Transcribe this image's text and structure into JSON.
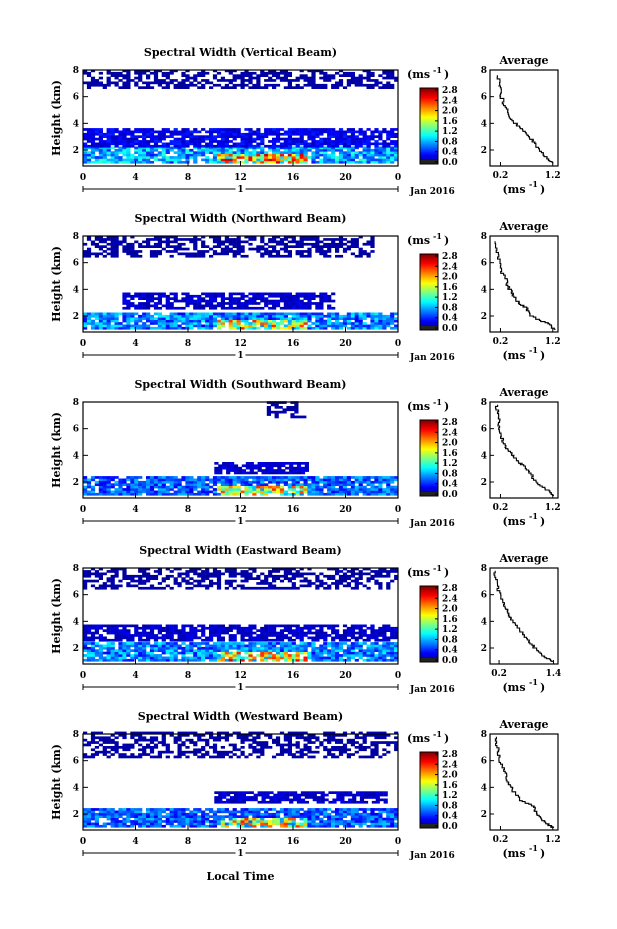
{
  "x_axis_label": "Local Time",
  "panels": [
    {
      "title": "Spectral Width (Vertical Beam)",
      "ylabel": "Height (km)",
      "date_label": "Jan 2016",
      "day_label": "1",
      "x_ticks": [
        "0",
        "4",
        "8",
        "12",
        "16",
        "20",
        "0"
      ],
      "y_ticks": [
        "2",
        "4",
        "6",
        "8"
      ],
      "colorbar_unit": "(ms",
      "colorbar_unit_sup": "-1",
      "colorbar_ticks": [
        "0.0",
        "0.4",
        "0.8",
        "1.2",
        "1.6",
        "2.0",
        "2.4",
        "2.8"
      ],
      "avg_title": "Average",
      "avg_xticks": [
        "0.2",
        "1.2"
      ],
      "avg_xlabel": "(ms",
      "avg_xlabel_sup": "-1",
      "avg_yticks": [
        "2",
        "4",
        "6",
        "8"
      ]
    },
    {
      "title": "Spectral Width (Northward Beam)",
      "ylabel": "Height (km)",
      "date_label": "Jan 2016",
      "day_label": "1",
      "x_ticks": [
        "0",
        "4",
        "8",
        "12",
        "16",
        "20",
        "0"
      ],
      "y_ticks": [
        "2",
        "4",
        "6",
        "8"
      ],
      "colorbar_unit": "(ms",
      "colorbar_unit_sup": "-1",
      "colorbar_ticks": [
        "0.0",
        "0.4",
        "0.8",
        "1.2",
        "1.6",
        "2.0",
        "2.4",
        "2.8"
      ],
      "avg_title": "Average",
      "avg_xticks": [
        "0.2",
        "1.2"
      ],
      "avg_xlabel": "(ms",
      "avg_xlabel_sup": "-1",
      "avg_yticks": [
        "2",
        "4",
        "6",
        "8"
      ]
    },
    {
      "title": "Spectral Width (Southward Beam)",
      "ylabel": "Height (km)",
      "date_label": "Jan 2016",
      "day_label": "1",
      "x_ticks": [
        "0",
        "4",
        "8",
        "12",
        "16",
        "20",
        "0"
      ],
      "y_ticks": [
        "2",
        "4",
        "6",
        "8"
      ],
      "colorbar_unit": "(ms",
      "colorbar_unit_sup": "-1",
      "colorbar_ticks": [
        "0.0",
        "0.4",
        "0.8",
        "1.2",
        "1.6",
        "2.0",
        "2.4",
        "2.8"
      ],
      "avg_title": "Average",
      "avg_xticks": [
        "0.2",
        "1.2"
      ],
      "avg_xlabel": "(ms",
      "avg_xlabel_sup": "-1",
      "avg_yticks": [
        "2",
        "4",
        "6",
        "8"
      ]
    },
    {
      "title": "Spectral Width (Eastward Beam)",
      "ylabel": "Height (km)",
      "date_label": "Jan 2016",
      "day_label": "1",
      "x_ticks": [
        "0",
        "4",
        "8",
        "12",
        "16",
        "20",
        "0"
      ],
      "y_ticks": [
        "2",
        "4",
        "6",
        "8"
      ],
      "colorbar_unit": "(ms",
      "colorbar_unit_sup": "-1",
      "colorbar_ticks": [
        "0.0",
        "0.4",
        "0.8",
        "1.2",
        "1.6",
        "2.0",
        "2.4",
        "2.8"
      ],
      "avg_title": "Average",
      "avg_xticks": [
        "0.2",
        "1.4"
      ],
      "avg_xlabel": "(ms",
      "avg_xlabel_sup": "-1",
      "avg_yticks": [
        "2",
        "4",
        "6",
        "8"
      ]
    },
    {
      "title": "Spectral Width (Westward Beam)",
      "ylabel": "Height (km)",
      "date_label": "Jan 2016",
      "day_label": "1",
      "x_ticks": [
        "0",
        "4",
        "8",
        "12",
        "16",
        "20",
        "0"
      ],
      "y_ticks": [
        "2",
        "4",
        "6",
        "8"
      ],
      "colorbar_unit": "(ms",
      "colorbar_unit_sup": "-1",
      "colorbar_ticks": [
        "0.0",
        "0.4",
        "0.8",
        "1.2",
        "1.6",
        "2.0",
        "2.4",
        "2.8"
      ],
      "avg_title": "Average",
      "avg_xticks": [
        "0.2",
        "1.2"
      ],
      "avg_xlabel": "(ms",
      "avg_xlabel_sup": "-1",
      "avg_yticks": [
        "2",
        "4",
        "6",
        "8"
      ]
    }
  ],
  "chart_data": [
    {
      "type": "heatmap",
      "title": "Spectral Width (Vertical Beam)",
      "ylabel": "Height (km)",
      "xlabel": "",
      "x_range_hours": [
        0,
        24
      ],
      "ylim": [
        0.8,
        8
      ],
      "clim": [
        0.0,
        2.8
      ],
      "colormap": "jet",
      "features": [
        {
          "height_km": [
            1.0,
            2.2
          ],
          "hours": [
            0,
            24
          ],
          "value_typical": 0.8,
          "value_max": 2.6
        },
        {
          "height_km": [
            2.2,
            3.5
          ],
          "hours": [
            0,
            24
          ],
          "value_typical": 0.3
        },
        {
          "height_km": [
            6.6,
            8.0
          ],
          "hours": [
            0,
            24
          ],
          "value_typical": 0.1
        }
      ]
    },
    {
      "type": "heatmap",
      "title": "Spectral Width (Northward Beam)",
      "ylabel": "Height (km)",
      "xlabel": "",
      "x_range_hours": [
        0,
        24
      ],
      "ylim": [
        0.8,
        8
      ],
      "clim": [
        0.0,
        2.8
      ],
      "colormap": "jet",
      "features": [
        {
          "height_km": [
            1.0,
            2.2
          ],
          "hours": [
            0,
            24
          ],
          "value_typical": 0.7,
          "value_max": 2.4
        },
        {
          "height_km": [
            2.5,
            3.6
          ],
          "hours": [
            3,
            19
          ],
          "value_typical": 0.2
        },
        {
          "height_km": [
            6.4,
            8.0
          ],
          "hours": [
            0,
            22
          ],
          "value_typical": 0.1
        }
      ]
    },
    {
      "type": "heatmap",
      "title": "Spectral Width (Southward Beam)",
      "ylabel": "Height (km)",
      "xlabel": "",
      "x_range_hours": [
        0,
        24
      ],
      "ylim": [
        0.8,
        8
      ],
      "clim": [
        0.0,
        2.8
      ],
      "colormap": "jet",
      "features": [
        {
          "height_km": [
            1.0,
            2.4
          ],
          "hours": [
            0,
            24
          ],
          "value_typical": 0.6,
          "value_max": 2.4
        },
        {
          "height_km": [
            2.6,
            3.4
          ],
          "hours": [
            10,
            17
          ],
          "value_typical": 0.2
        },
        {
          "height_km": [
            6.8,
            8.0
          ],
          "hours": [
            14,
            17
          ],
          "value_typical": 0.1
        }
      ]
    },
    {
      "type": "heatmap",
      "title": "Spectral Width (Eastward Beam)",
      "ylabel": "Height (km)",
      "xlabel": "",
      "x_range_hours": [
        0,
        24
      ],
      "ylim": [
        0.8,
        8
      ],
      "clim": [
        0.0,
        2.8
      ],
      "colormap": "jet",
      "features": [
        {
          "height_km": [
            1.0,
            2.4
          ],
          "hours": [
            0,
            24
          ],
          "value_typical": 0.7,
          "value_max": 2.6
        },
        {
          "height_km": [
            2.5,
            3.6
          ],
          "hours": [
            0,
            24
          ],
          "value_typical": 0.2
        },
        {
          "height_km": [
            6.4,
            8.0
          ],
          "hours": [
            0,
            24
          ],
          "value_typical": 0.1
        }
      ]
    },
    {
      "type": "heatmap",
      "title": "Spectral Width (Westward Beam)",
      "ylabel": "Height (km)",
      "xlabel": "Local Time",
      "x_range_hours": [
        0,
        24
      ],
      "ylim": [
        0.8,
        8
      ],
      "clim": [
        0.0,
        2.8
      ],
      "colormap": "jet",
      "features": [
        {
          "height_km": [
            1.0,
            2.4
          ],
          "hours": [
            0,
            24
          ],
          "value_typical": 0.6,
          "value_max": 2.4
        },
        {
          "height_km": [
            2.8,
            3.6
          ],
          "hours": [
            10,
            23
          ],
          "value_typical": 0.2
        },
        {
          "height_km": [
            6.2,
            8.0
          ],
          "hours": [
            0,
            24
          ],
          "value_typical": 0.1
        }
      ]
    },
    {
      "type": "line",
      "title": "Average",
      "panel": "Vertical Beam",
      "xlim": [
        0.0,
        1.3
      ],
      "ylim": [
        0.8,
        8
      ],
      "x": [
        1.2,
        1.1,
        0.95,
        0.85,
        0.7,
        0.55,
        0.4,
        0.3,
        0.22,
        0.18,
        0.15
      ],
      "y": [
        1.0,
        1.4,
        2.0,
        2.6,
        3.2,
        3.8,
        4.4,
        5.2,
        6.0,
        6.8,
        7.6
      ]
    },
    {
      "type": "line",
      "title": "Average",
      "panel": "Northward Beam",
      "xlim": [
        0.0,
        1.3
      ],
      "ylim": [
        0.8,
        8
      ],
      "x": [
        1.25,
        1.1,
        0.8,
        0.7,
        0.55,
        0.45,
        0.35,
        0.3,
        0.2,
        0.15,
        0.12
      ],
      "y": [
        1.0,
        1.5,
        2.0,
        2.6,
        3.0,
        3.6,
        4.2,
        4.8,
        5.6,
        6.6,
        7.6
      ]
    },
    {
      "type": "line",
      "title": "Average",
      "panel": "Southward Beam",
      "xlim": [
        0.0,
        1.3
      ],
      "ylim": [
        0.8,
        8
      ],
      "x": [
        1.22,
        1.1,
        0.9,
        0.75,
        0.6,
        0.45,
        0.3,
        0.22,
        0.18,
        0.15,
        0.12
      ],
      "y": [
        1.0,
        1.4,
        2.0,
        2.8,
        3.4,
        4.0,
        4.6,
        5.4,
        6.2,
        7.0,
        7.8
      ]
    },
    {
      "type": "line",
      "title": "Average",
      "panel": "Eastward Beam",
      "xlim": [
        0.0,
        1.5
      ],
      "ylim": [
        0.8,
        8
      ],
      "x": [
        1.4,
        1.2,
        1.0,
        0.85,
        0.7,
        0.55,
        0.45,
        0.35,
        0.25,
        0.15,
        0.1
      ],
      "y": [
        1.0,
        1.4,
        2.0,
        2.6,
        3.2,
        3.8,
        4.4,
        5.0,
        5.8,
        6.8,
        7.8
      ]
    },
    {
      "type": "line",
      "title": "Average",
      "panel": "Westward Beam",
      "xlim": [
        0.0,
        1.3
      ],
      "ylim": [
        0.8,
        8
      ],
      "x": [
        1.22,
        1.05,
        0.9,
        0.85,
        0.6,
        0.45,
        0.35,
        0.28,
        0.2,
        0.15,
        0.12
      ],
      "y": [
        1.0,
        1.4,
        2.0,
        2.6,
        3.0,
        3.8,
        4.4,
        5.2,
        6.0,
        6.8,
        7.8
      ]
    }
  ]
}
